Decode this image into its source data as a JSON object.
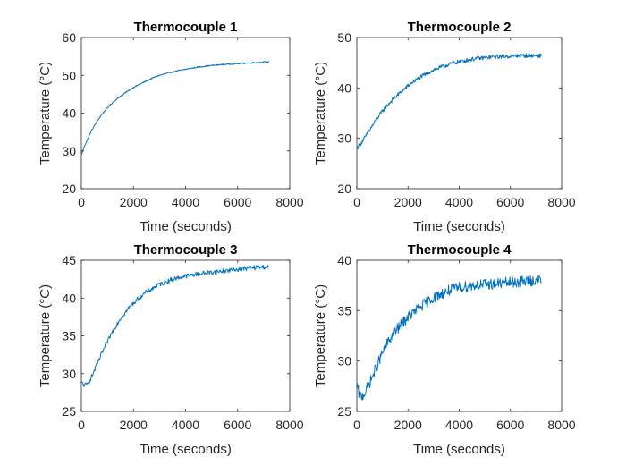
{
  "chart_data": [
    {
      "type": "line",
      "title": "Thermocouple 1",
      "xlabel": "Time (seconds)",
      "ylabel": "Temperature (°C)",
      "xlim": [
        0,
        8000
      ],
      "ylim": [
        20,
        60
      ],
      "xticks": [
        0,
        2000,
        4000,
        6000,
        8000
      ],
      "yticks": [
        20,
        30,
        40,
        50,
        60
      ],
      "xtick_labels": [
        "0",
        "2000",
        "4000",
        "6000",
        "8000"
      ],
      "ytick_labels": [
        "20",
        "30",
        "40",
        "50",
        "60"
      ],
      "grid": false,
      "color": "#0072BD",
      "series": [
        {
          "x": [
            0,
            100,
            200,
            400,
            600,
            800,
            1000,
            1200,
            1500,
            1800,
            2000,
            2200,
            2500,
            2800,
            3000,
            3500,
            4000,
            4500,
            5000,
            5500,
            6000,
            6500,
            7000,
            7200
          ],
          "y": [
            28.8,
            31.0,
            32.5,
            35.5,
            37.8,
            39.8,
            41.4,
            42.8,
            44.5,
            45.9,
            46.8,
            47.5,
            48.5,
            49.5,
            50.0,
            50.9,
            51.6,
            52.2,
            52.6,
            52.9,
            53.1,
            53.3,
            53.5,
            53.6
          ],
          "noise": 0.15
        }
      ]
    },
    {
      "type": "line",
      "title": "Thermocouple 2",
      "xlabel": "Time (seconds)",
      "ylabel": "Temperature (°C)",
      "xlim": [
        0,
        8000
      ],
      "ylim": [
        20,
        50
      ],
      "xticks": [
        0,
        2000,
        4000,
        6000,
        8000
      ],
      "yticks": [
        20,
        30,
        40,
        50
      ],
      "xtick_labels": [
        "0",
        "2000",
        "4000",
        "6000",
        "8000"
      ],
      "ytick_labels": [
        "20",
        "30",
        "40",
        "50"
      ],
      "grid": false,
      "color": "#0072BD",
      "series": [
        {
          "x": [
            0,
            200,
            400,
            600,
            800,
            1000,
            1200,
            1500,
            1800,
            2000,
            2200,
            2500,
            3000,
            3500,
            4000,
            4500,
            5000,
            5500,
            6000,
            6500,
            7000,
            7200
          ],
          "y": [
            28.0,
            29.3,
            30.8,
            32.4,
            34.0,
            35.4,
            36.6,
            38.2,
            39.5,
            40.4,
            41.2,
            42.2,
            43.6,
            44.5,
            45.2,
            45.7,
            46.0,
            46.2,
            46.3,
            46.4,
            46.4,
            46.4
          ],
          "noise": 0.4
        }
      ]
    },
    {
      "type": "line",
      "title": "Thermocouple 3",
      "xlabel": "Time (seconds)",
      "ylabel": "Temperature (°C)",
      "xlim": [
        0,
        8000
      ],
      "ylim": [
        25,
        45
      ],
      "xticks": [
        0,
        2000,
        4000,
        6000,
        8000
      ],
      "yticks": [
        25,
        30,
        35,
        40,
        45
      ],
      "xtick_labels": [
        "0",
        "2000",
        "4000",
        "6000",
        "8000"
      ],
      "ytick_labels": [
        "25",
        "30",
        "35",
        "40",
        "45"
      ],
      "grid": false,
      "color": "#0072BD",
      "series": [
        {
          "x": [
            0,
            100,
            200,
            300,
            400,
            600,
            800,
            1000,
            1200,
            1500,
            1800,
            2000,
            2200,
            2500,
            3000,
            3500,
            4000,
            4500,
            5000,
            5500,
            6000,
            6500,
            7000,
            7200
          ],
          "y": [
            28.8,
            28.5,
            28.5,
            29.0,
            29.6,
            31.2,
            32.8,
            34.2,
            35.6,
            37.3,
            38.6,
            39.3,
            40.0,
            40.8,
            41.8,
            42.5,
            42.9,
            43.2,
            43.4,
            43.6,
            43.8,
            44.0,
            44.1,
            44.1
          ],
          "noise": 0.3
        }
      ]
    },
    {
      "type": "line",
      "title": "Thermocouple 4",
      "xlabel": "Time (seconds)",
      "ylabel": "Temperature (°C)",
      "xlim": [
        0,
        8000
      ],
      "ylim": [
        25,
        40
      ],
      "xticks": [
        0,
        2000,
        4000,
        6000,
        8000
      ],
      "yticks": [
        25,
        30,
        35,
        40
      ],
      "xtick_labels": [
        "0",
        "2000",
        "4000",
        "6000",
        "8000"
      ],
      "ytick_labels": [
        "25",
        "30",
        "35",
        "40"
      ],
      "grid": false,
      "color": "#0072BD",
      "series": [
        {
          "x": [
            0,
            100,
            200,
            300,
            400,
            600,
            800,
            1000,
            1200,
            1500,
            1800,
            2000,
            2200,
            2500,
            3000,
            3500,
            4000,
            4500,
            5000,
            5500,
            6000,
            6500,
            7000,
            7200
          ],
          "y": [
            27.6,
            26.6,
            26.5,
            26.8,
            27.3,
            28.4,
            29.6,
            30.8,
            31.8,
            32.9,
            33.8,
            34.4,
            34.8,
            35.4,
            36.3,
            36.9,
            37.3,
            37.5,
            37.6,
            37.7,
            37.8,
            37.9,
            38.0,
            38.1
          ],
          "noise": 0.55
        }
      ]
    }
  ]
}
